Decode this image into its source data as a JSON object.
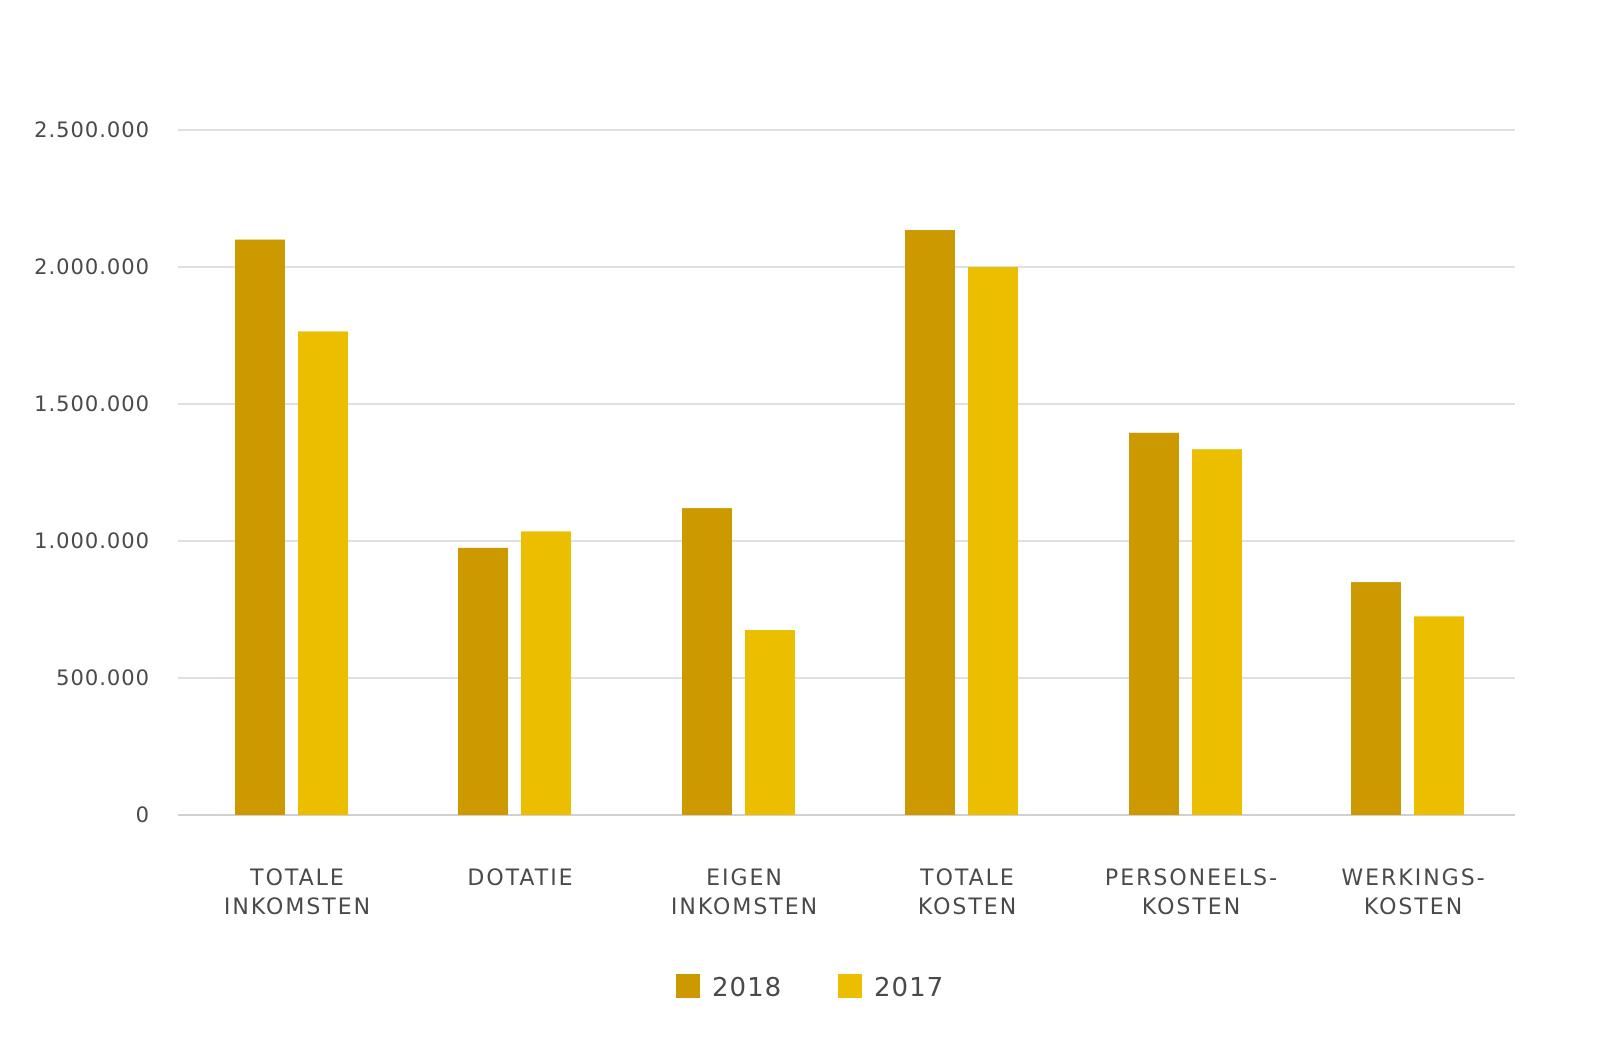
{
  "chart_data": {
    "type": "bar",
    "categories": [
      [
        "TOTALE",
        "INKOMSTEN"
      ],
      [
        "DOTATIE"
      ],
      [
        "EIGEN",
        "INKOMSTEN"
      ],
      [
        "TOTALE",
        "KOSTEN"
      ],
      [
        "PERSONEELS-",
        "KOSTEN"
      ],
      [
        "WERKINGS-",
        "KOSTEN"
      ]
    ],
    "series": [
      {
        "name": "2018",
        "color": "#CC9900",
        "values": [
          2100000,
          975000,
          1120000,
          2135000,
          1395000,
          850000
        ]
      },
      {
        "name": "2017",
        "color": "#EBBE00",
        "values": [
          1765000,
          1035000,
          675000,
          2000000,
          1335000,
          725000
        ]
      }
    ],
    "ylim": [
      0,
      2500000
    ],
    "yticks": [
      0,
      500000,
      1000000,
      1500000,
      2000000,
      2500000
    ],
    "ytick_labels": [
      "0",
      "500.000",
      "1.000.000",
      "1.500.000",
      "2.000.000",
      "2.500.000"
    ],
    "grid": true,
    "legend_position": "bottom-center"
  }
}
